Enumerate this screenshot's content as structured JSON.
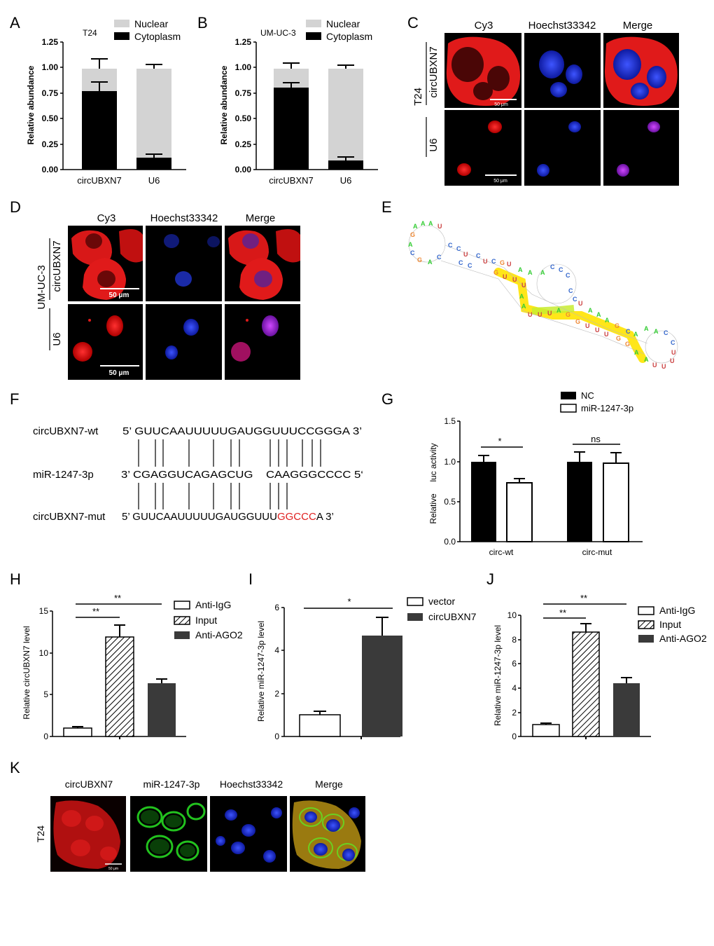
{
  "panels": {
    "A": {
      "letter": "A",
      "cell_line": "T24",
      "legend": [
        "Nuclear",
        "Cytoplasm"
      ],
      "ylabel": "Relative abundance",
      "categories": [
        "circUBXN7",
        "U6"
      ],
      "yticks": [
        "0.00",
        "0.25",
        "0.50",
        "0.75",
        "1.00",
        "1.25"
      ]
    },
    "B": {
      "letter": "B",
      "cell_line": "UM-UC-3",
      "legend": [
        "Nuclear",
        "Cytoplasm"
      ],
      "ylabel": "Relative abundance",
      "categories": [
        "circUBXN7",
        "U6"
      ],
      "yticks": [
        "0.00",
        "0.25",
        "0.50",
        "0.75",
        "1.00",
        "1.25"
      ]
    },
    "C": {
      "letter": "C",
      "columns": [
        "Cy3",
        "Hoechst33342",
        "Merge"
      ],
      "cell_line": "T24",
      "rows": [
        "circUBXN7",
        "U6"
      ],
      "scale_bar": "50 μm"
    },
    "D": {
      "letter": "D",
      "columns": [
        "Cy3",
        "Hoechst33342",
        "Merge"
      ],
      "cell_line": "UM-UC-3",
      "rows": [
        "circUBXN7",
        "U6"
      ],
      "scale_bar": "50 μm"
    },
    "E": {
      "letter": "E"
    },
    "F": {
      "letter": "F",
      "rows": [
        {
          "label": "circUBXN7-wt",
          "seq": "5’ GUUCAAUUUUUGAUGGUUUCCGGGA 3’"
        },
        {
          "label": "miR-1247-3p",
          "seq": "3’ CGAGGUCAGAGCUG    CAAGGGCCCC 5‘"
        },
        {
          "label": "circUBXN7-mut",
          "seq_prefix": "5’ GUUCAAUUUUUGAUGGUUU",
          "seq_mut": "GGCCC",
          "seq_suffix": "A 3’"
        }
      ]
    },
    "G": {
      "letter": "G",
      "legend": [
        "NC",
        "miR-1247-3p"
      ],
      "ylabel_parts": [
        "Relative",
        "luc activity"
      ],
      "categories": [
        "circ-wt",
        "circ-mut"
      ],
      "yticks": [
        "0.0",
        "0.5",
        "1.0",
        "1.5"
      ],
      "sig": [
        "*",
        "ns"
      ]
    },
    "H": {
      "letter": "H",
      "legend": [
        "Anti-IgG",
        "Input",
        "Anti-AGO2"
      ],
      "ylabel": "Relative circUBXN7 level",
      "yticks": [
        "0",
        "5",
        "10",
        "15"
      ],
      "sig": [
        "**",
        "**"
      ]
    },
    "I": {
      "letter": "I",
      "legend": [
        "vector",
        "circUBXN7"
      ],
      "ylabel": "Relative miR-1247-3p level",
      "yticks": [
        "0",
        "2",
        "4",
        "6"
      ],
      "sig": [
        "*"
      ]
    },
    "J": {
      "letter": "J",
      "legend": [
        "Anti-IgG",
        "Input",
        "Anti-AGO2"
      ],
      "ylabel": "Relative miR-1247-3p level",
      "yticks": [
        "0",
        "2",
        "4",
        "6",
        "8",
        "10"
      ],
      "sig": [
        "**",
        "**"
      ]
    },
    "K": {
      "letter": "K",
      "columns": [
        "circUBXN7",
        "miR-1247-3p",
        "Hoechst33342",
        "Merge"
      ],
      "cell_line": "T24",
      "scale_bar": "50 μm"
    }
  },
  "colors": {
    "nuclear": "#d3d3d3",
    "cytoplasm": "#000000",
    "anti_ago2": "#3a3a3a",
    "mutation_red": "#e02020",
    "cy3_red": "#e01a1a",
    "hoechst_blue": "#1f2fd6",
    "fitc_green": "#22c21e"
  },
  "chart_data": [
    {
      "panel": "A",
      "type": "bar",
      "stacked": true,
      "categories": [
        "circUBXN7",
        "U6"
      ],
      "series": [
        {
          "name": "Cytoplasm",
          "values": [
            0.77,
            0.12
          ],
          "errors": [
            0.09,
            0.03
          ]
        },
        {
          "name": "Nuclear",
          "values": [
            0.22,
            0.87
          ],
          "errors": [
            0.09,
            0.03
          ]
        }
      ],
      "ylabel": "Relative abundance",
      "ylim": [
        0,
        1.25
      ]
    },
    {
      "panel": "B",
      "type": "bar",
      "stacked": true,
      "categories": [
        "circUBXN7",
        "U6"
      ],
      "series": [
        {
          "name": "Cytoplasm",
          "values": [
            0.8,
            0.09
          ],
          "errors": [
            0.05,
            0.03
          ]
        },
        {
          "name": "Nuclear",
          "values": [
            0.19,
            0.9
          ],
          "errors": [
            0.05,
            0.03
          ]
        }
      ],
      "ylabel": "Relative abundance",
      "ylim": [
        0,
        1.25
      ]
    },
    {
      "panel": "G",
      "type": "bar",
      "categories": [
        "circ-wt",
        "circ-mut"
      ],
      "series": [
        {
          "name": "NC",
          "values": [
            1.0,
            1.0
          ],
          "errors": [
            0.07,
            0.12
          ]
        },
        {
          "name": "miR-1247-3p",
          "values": [
            0.73,
            0.98
          ],
          "errors": [
            0.05,
            0.13
          ]
        }
      ],
      "ylabel": "Relative luc activity",
      "ylim": [
        0,
        1.5
      ],
      "annotations": [
        "*",
        "ns"
      ]
    },
    {
      "panel": "H",
      "type": "bar",
      "categories": [
        "Anti-IgG",
        "Input",
        "Anti-AGO2"
      ],
      "values": [
        1.0,
        11.9,
        6.4
      ],
      "errors": [
        0.2,
        1.5,
        0.5
      ],
      "ylabel": "Relative circUBXN7 level",
      "ylim": [
        0,
        15
      ],
      "annotations": [
        "**",
        "**"
      ]
    },
    {
      "panel": "I",
      "type": "bar",
      "categories": [
        "vector",
        "circUBXN7"
      ],
      "values": [
        1.0,
        4.7
      ],
      "errors": [
        0.15,
        0.8
      ],
      "ylabel": "Relative miR-1247-3p level",
      "ylim": [
        0,
        6
      ],
      "annotations": [
        "*"
      ]
    },
    {
      "panel": "J",
      "type": "bar",
      "categories": [
        "Anti-IgG",
        "Input",
        "Anti-AGO2"
      ],
      "values": [
        1.0,
        8.6,
        4.4
      ],
      "errors": [
        0.1,
        0.7,
        0.5
      ],
      "ylabel": "Relative miR-1247-3p level",
      "ylim": [
        0,
        10
      ],
      "annotations": [
        "**",
        "**"
      ]
    }
  ]
}
